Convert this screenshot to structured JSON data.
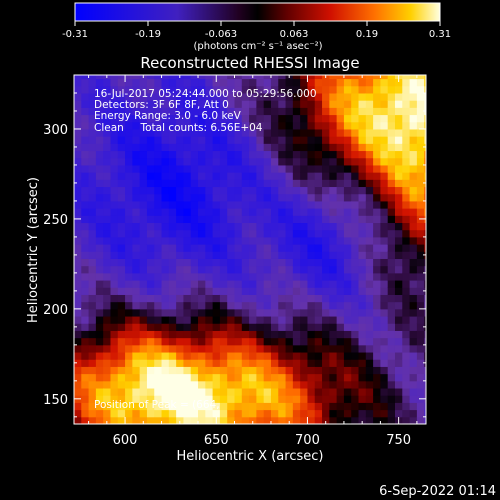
{
  "colorbar": {
    "ticks": [
      "-0.31",
      "-0.19",
      "-0.063",
      "0.063",
      "0.19",
      "0.31"
    ],
    "units_label": "(photons cm⁻² s⁻¹ asec⁻²)",
    "range": [
      -0.31,
      0.31
    ]
  },
  "chart_data": {
    "type": "heatmap",
    "title": "Reconstructed RHESSI Image",
    "xlabel": "Heliocentric X (arcsec)",
    "ylabel": "Heliocentric Y (arcsec)",
    "xlim": [
      572,
      765
    ],
    "ylim": [
      136,
      330
    ],
    "xticks": [
      600,
      650,
      700,
      750
    ],
    "yticks": [
      150,
      200,
      250,
      300
    ],
    "annotations": [
      "16-Jul-2017 05:24:44.000 to 05:29:56.000",
      "Detectors: 3F 6F 8F, Att 0",
      "Energy Range: 3.0 - 6.0 keV",
      "Clean     Total counts: 6.56E+04"
    ],
    "peak_label": "Position of Peak = (664,"
  },
  "footer": {
    "date": "6-Sep-2022 01:14"
  },
  "colors": {
    "background": "#000000",
    "text": "#ffffff"
  }
}
